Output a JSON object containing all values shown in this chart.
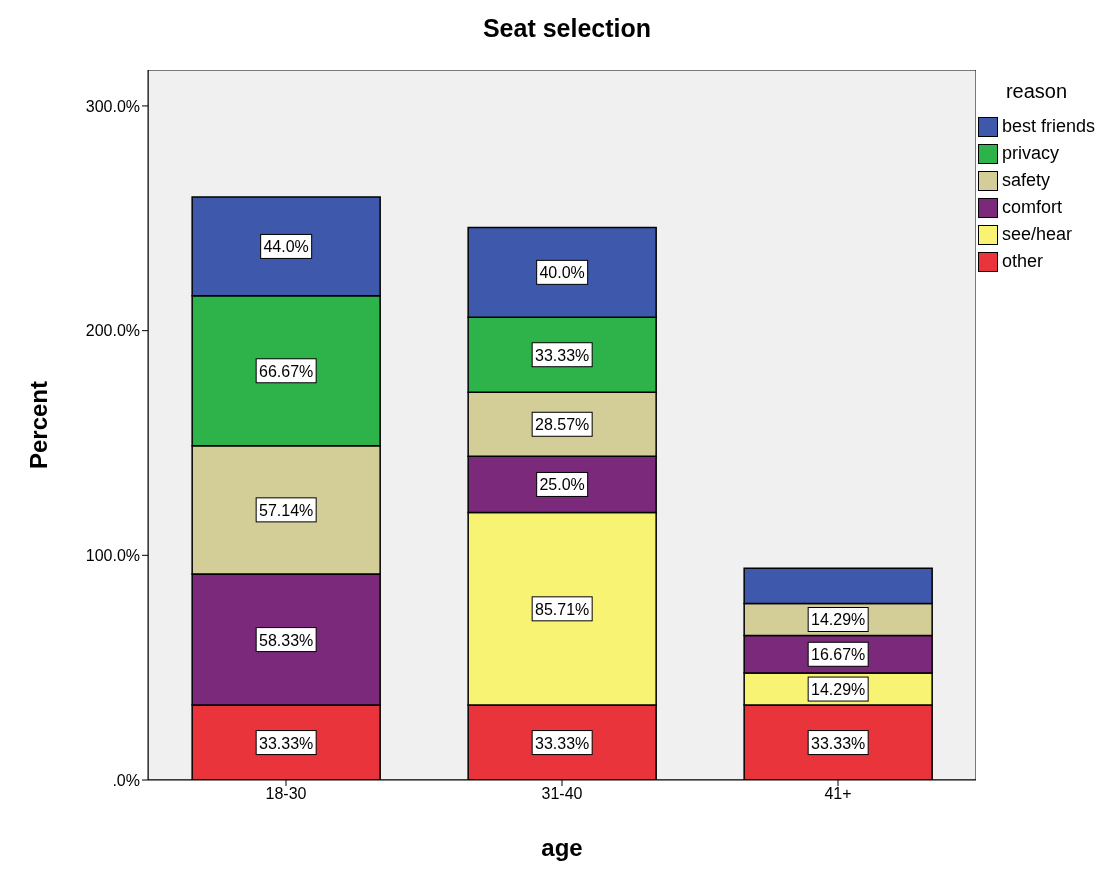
{
  "chart_data": {
    "type": "bar",
    "title": "Seat selection",
    "xlabel": "age",
    "ylabel": "Percent",
    "legend_title": "reason",
    "categories": [
      "18-30",
      "31-40",
      "41+"
    ],
    "stacked": true,
    "ylim": [
      0,
      316
    ],
    "yticks": [
      {
        "value": 0,
        "label": ".0%"
      },
      {
        "value": 100,
        "label": "100.0%"
      },
      {
        "value": 200,
        "label": "200.0%"
      },
      {
        "value": 300,
        "label": "300.0%"
      }
    ],
    "grid": false,
    "legend": "top right",
    "series": [
      {
        "name": "other",
        "color": "#e8343a",
        "values": [
          33.33,
          33.33,
          33.33
        ],
        "value_labels": [
          "33.33%",
          "33.33%",
          "33.33%"
        ]
      },
      {
        "name": "see/hear",
        "color": "#f9f373",
        "values": [
          null,
          85.71,
          14.29
        ],
        "value_labels": [
          null,
          "85.71%",
          "14.29%"
        ]
      },
      {
        "name": "comfort",
        "color": "#7b2a7b",
        "values": [
          58.33,
          25.0,
          16.67
        ],
        "value_labels": [
          "58.33%",
          "25.0%",
          "16.67%"
        ]
      },
      {
        "name": "safety",
        "color": "#d3ce97",
        "values": [
          57.14,
          28.57,
          14.29
        ],
        "value_labels": [
          "57.14%",
          "28.57%",
          "14.29%"
        ]
      },
      {
        "name": "privacy",
        "color": "#2db34a",
        "values": [
          66.67,
          33.33,
          null
        ],
        "value_labels": [
          "66.67%",
          "33.33%",
          null
        ]
      },
      {
        "name": "best friends",
        "color": "#3e58ac",
        "values": [
          44.0,
          40.0,
          15.7
        ],
        "value_labels": [
          "44.0%",
          "40.0%",
          null
        ]
      }
    ]
  }
}
